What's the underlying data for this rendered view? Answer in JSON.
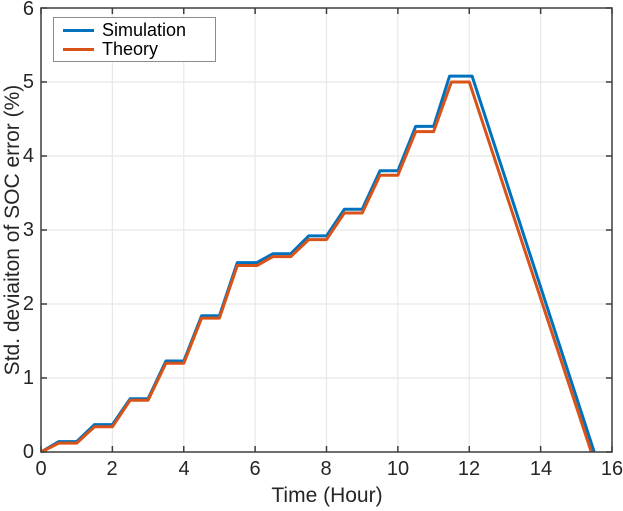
{
  "chart_data": {
    "type": "line",
    "title": "",
    "xlabel": "Time (Hour)",
    "ylabel": "Std. deviaiton of SOC error (%)",
    "xlim": [
      0,
      16
    ],
    "ylim": [
      0,
      6
    ],
    "xticks": [
      0,
      2,
      4,
      6,
      8,
      10,
      12,
      14,
      16
    ],
    "yticks": [
      0,
      1,
      2,
      3,
      4,
      5,
      6
    ],
    "xticklabels": [
      "0",
      "2",
      "4",
      "6",
      "8",
      "10",
      "12",
      "14",
      "16"
    ],
    "yticklabels": [
      "0",
      "1",
      "2",
      "3",
      "4",
      "5",
      "6"
    ],
    "grid": true,
    "legend_position": "top-left",
    "axis_color": "#3d3d3d",
    "grid_color": "#e8e8e8",
    "series": [
      {
        "name": "Simulation",
        "color": "#0072BD",
        "points": [
          [
            0,
            0
          ],
          [
            0.5,
            0.14
          ],
          [
            1.0,
            0.14
          ],
          [
            1.5,
            0.37
          ],
          [
            2.0,
            0.37
          ],
          [
            2.5,
            0.72
          ],
          [
            3.0,
            0.72
          ],
          [
            3.5,
            1.23
          ],
          [
            4.0,
            1.23
          ],
          [
            4.5,
            1.84
          ],
          [
            5.0,
            1.84
          ],
          [
            5.5,
            2.56
          ],
          [
            6.05,
            2.56
          ],
          [
            6.5,
            2.68
          ],
          [
            7.0,
            2.68
          ],
          [
            7.5,
            2.92
          ],
          [
            8.0,
            2.92
          ],
          [
            8.5,
            3.28
          ],
          [
            9.0,
            3.28
          ],
          [
            9.5,
            3.8
          ],
          [
            10.0,
            3.8
          ],
          [
            10.5,
            4.4
          ],
          [
            11.0,
            4.4
          ],
          [
            11.45,
            5.08
          ],
          [
            12.08,
            5.08
          ],
          [
            15.5,
            0
          ]
        ]
      },
      {
        "name": "Theory",
        "color": "#D95319",
        "points": [
          [
            0,
            0
          ],
          [
            0.5,
            0.12
          ],
          [
            1.0,
            0.12
          ],
          [
            1.5,
            0.34
          ],
          [
            2.0,
            0.34
          ],
          [
            2.5,
            0.7
          ],
          [
            3.0,
            0.7
          ],
          [
            3.5,
            1.2
          ],
          [
            4.0,
            1.2
          ],
          [
            4.5,
            1.81
          ],
          [
            5.0,
            1.81
          ],
          [
            5.5,
            2.52
          ],
          [
            6.05,
            2.52
          ],
          [
            6.5,
            2.64
          ],
          [
            7.0,
            2.64
          ],
          [
            7.5,
            2.87
          ],
          [
            8.0,
            2.87
          ],
          [
            8.5,
            3.23
          ],
          [
            9.0,
            3.23
          ],
          [
            9.5,
            3.74
          ],
          [
            10.0,
            3.74
          ],
          [
            10.5,
            4.33
          ],
          [
            11.0,
            4.33
          ],
          [
            11.5,
            5.0
          ],
          [
            12.0,
            5.0
          ],
          [
            15.42,
            0
          ]
        ]
      }
    ]
  }
}
